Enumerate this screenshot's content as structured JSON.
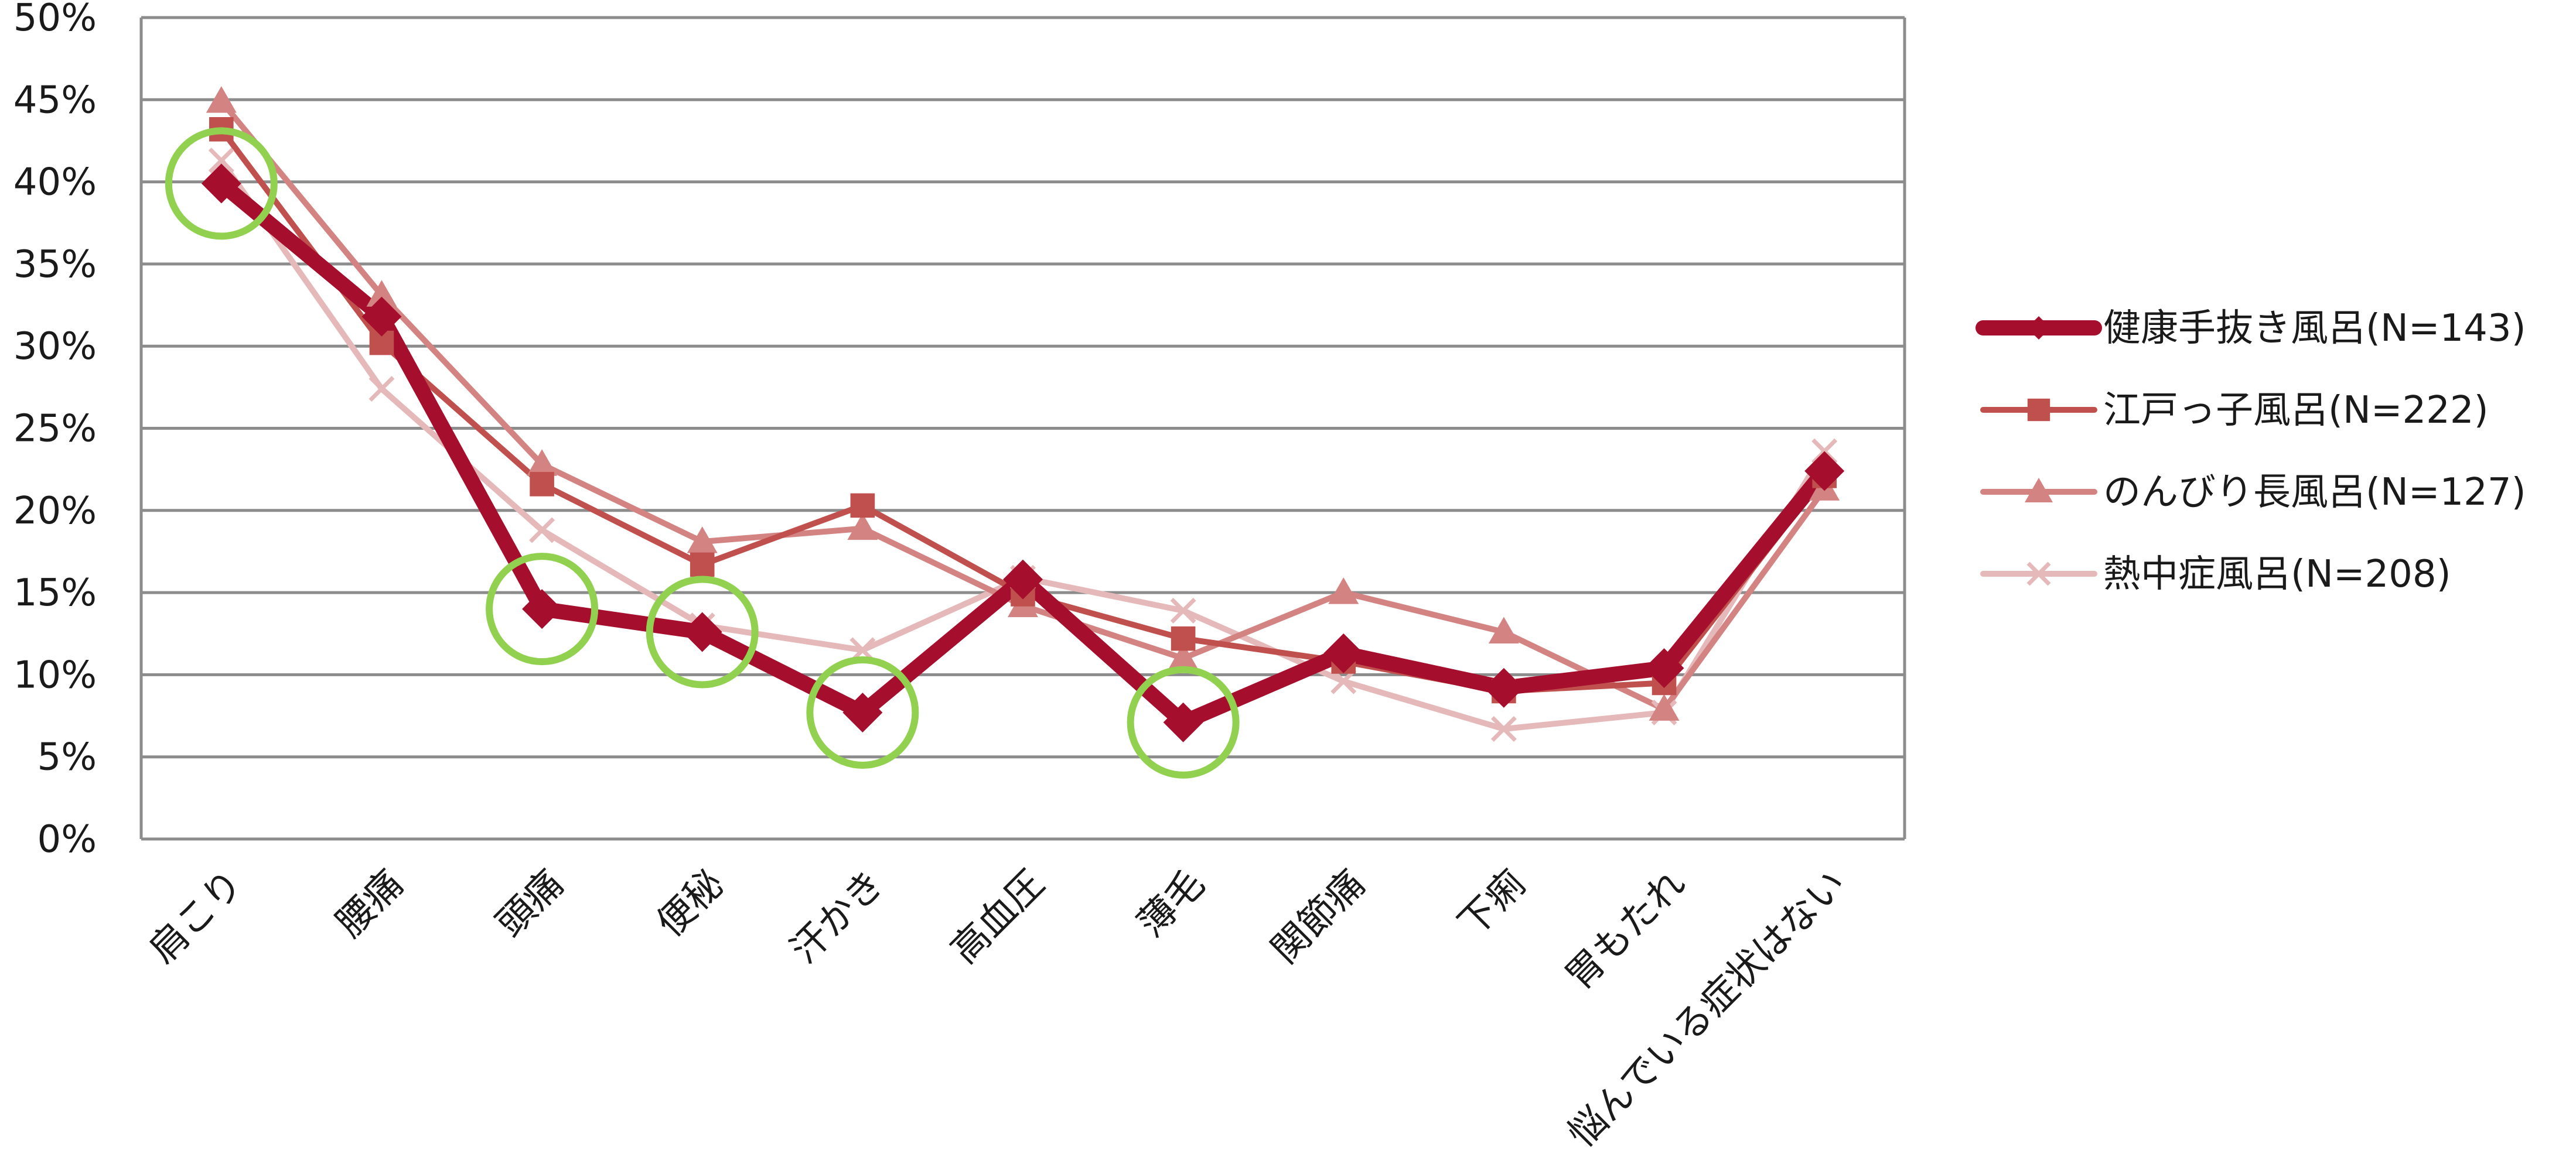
{
  "chart_data": {
    "type": "line",
    "categories": [
      "肩こり",
      "腰痛",
      "頭痛",
      "便秘",
      "汗かき",
      "高血圧",
      "薄毛",
      "関節痛",
      "下痢",
      "胃もたれ",
      "悩んでいる症状はない"
    ],
    "y_ticks": [
      "0%",
      "5%",
      "10%",
      "15%",
      "20%",
      "25%",
      "30%",
      "35%",
      "40%",
      "45%",
      "50%"
    ],
    "ylim": [
      0,
      50
    ],
    "grid": true,
    "legend_position": "right",
    "series": [
      {
        "name": "健康手抜き風呂(N=143)",
        "color": "#A50F2D",
        "marker": "diamond",
        "width": 26,
        "values": [
          39.9,
          31.8,
          14.0,
          12.6,
          7.7,
          15.8,
          7.1,
          11.3,
          9.2,
          10.4,
          22.4
        ]
      },
      {
        "name": "江戸っ子風呂(N=222)",
        "color": "#C0504D",
        "marker": "square",
        "width": 10,
        "values": [
          43.2,
          30.2,
          21.6,
          16.7,
          20.3,
          14.9,
          12.2,
          10.8,
          9.0,
          9.5,
          22.1
        ]
      },
      {
        "name": "のんびり長風呂(N=127)",
        "color": "#D48383",
        "marker": "triangle",
        "width": 10,
        "values": [
          44.9,
          33.1,
          22.8,
          18.1,
          18.9,
          14.2,
          11.0,
          15.0,
          12.6,
          7.9,
          21.3
        ]
      },
      {
        "name": "熱中症風呂(N=208)",
        "color": "#E5B9BA",
        "marker": "x",
        "width": 10,
        "values": [
          41.3,
          27.4,
          18.8,
          13.0,
          11.5,
          15.9,
          13.9,
          9.6,
          6.7,
          7.7,
          23.6
        ]
      }
    ],
    "highlight_color": "#92D050",
    "highlighted_categories": [
      "肩こり",
      "頭痛",
      "便秘",
      "汗かき",
      "薄毛"
    ]
  }
}
